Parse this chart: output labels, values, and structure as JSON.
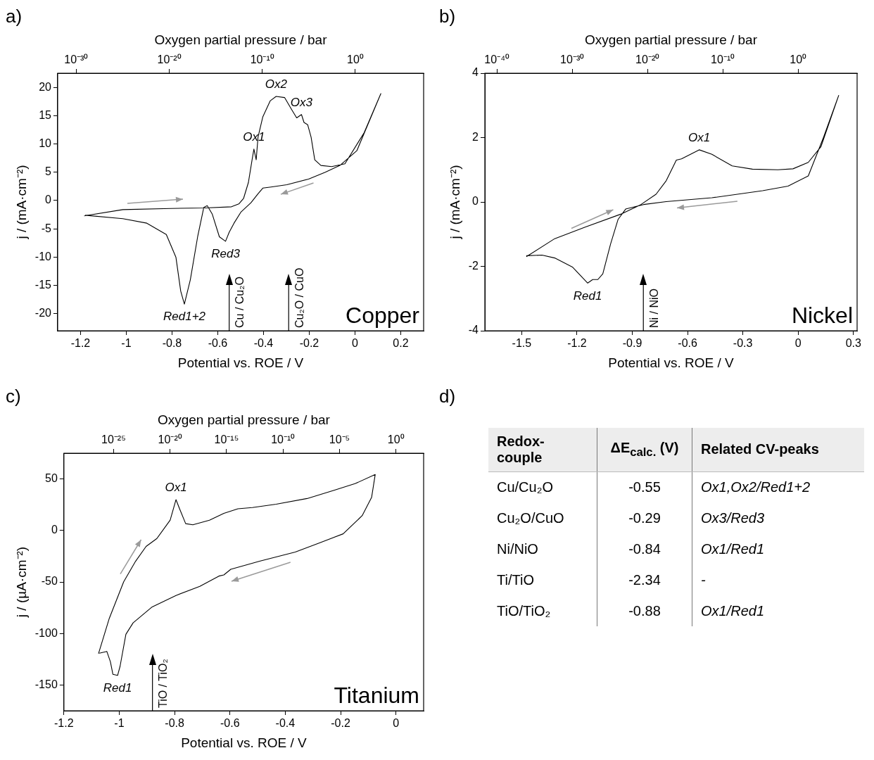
{
  "chart_data": [
    {
      "type": "line",
      "title": "a)",
      "xlabel": "Potential vs. ROE / V",
      "ylabel": "j / (mA·cm⁻²)",
      "x2label": "Oxygen partial pressure / bar",
      "log": "x2",
      "xlim": [
        -1.3,
        0.3
      ],
      "xticks": [
        -1.2,
        -1,
        -0.8,
        -0.6,
        -0.4,
        -0.2,
        0,
        0.2
      ],
      "ylim": [
        -23,
        22.5
      ],
      "yticks": [
        -20,
        -15,
        -10,
        -5,
        0,
        5,
        10,
        15,
        20
      ],
      "x2lim": [
        1.4e-32,
        22000000.0
      ],
      "x2ticks": [
        {
          "value": 1e-30,
          "label": "10⁻³⁰"
        },
        {
          "value": 1e-20,
          "label": "10⁻²⁰"
        },
        {
          "value": 1e-10,
          "label": "10⁻¹⁰"
        },
        {
          "value": 1,
          "label": "10⁰"
        }
      ],
      "series": [
        {
          "color": "#000000",
          "x": [
            -1.184,
            -1.015,
            -0.804,
            -0.656,
            -0.54,
            -0.508,
            -0.487,
            -0.466,
            -0.45,
            -0.442,
            -0.432,
            -0.424,
            -0.403,
            -0.371,
            -0.345,
            -0.308,
            -0.276,
            -0.255,
            -0.234,
            -0.223,
            -0.207,
            -0.192,
            -0.176,
            -0.149,
            -0.102,
            -0.044,
            0.04,
            0.113,
            0.008,
            -0.066,
            -0.13,
            -0.203,
            -0.298,
            -0.367,
            -0.403,
            -0.424,
            -0.455,
            -0.498,
            -0.529,
            -0.55,
            -0.566,
            -0.593,
            -0.624,
            -0.646,
            -0.661,
            -0.688,
            -0.72,
            -0.746,
            -0.762,
            -0.783,
            -0.825,
            -0.91,
            -1.015,
            -1.18
          ],
          "values": [
            -2.7,
            -1.6,
            -1.4,
            -1.3,
            -1.1,
            -0.6,
            0.4,
            3.2,
            7.2,
            9.1,
            7.2,
            11.2,
            14.8,
            17.6,
            18.4,
            18.2,
            16,
            14.6,
            15.2,
            13.8,
            13.4,
            11.2,
            7.2,
            6.2,
            6,
            6.5,
            12,
            18.9,
            8.8,
            6.2,
            5,
            3.8,
            2.8,
            2.4,
            2.2,
            1.2,
            -0.4,
            -2,
            -4,
            -5.6,
            -7.2,
            -6.4,
            -2.4,
            -0.9,
            -1.2,
            -6.4,
            -14,
            -18.3,
            -16,
            -10,
            -6,
            -4,
            -3.2,
            -2.6
          ]
        }
      ],
      "ref_lines": [
        {
          "axis": "x",
          "value": -0.55,
          "label": "Cu / Cu₂O",
          "color": "#000000"
        },
        {
          "axis": "x",
          "value": -0.29,
          "label": "Cu₂O / CuO",
          "color": "#000000"
        }
      ],
      "annotations": [
        {
          "text": "Ox1",
          "x": -0.442,
          "y": 9.1
        },
        {
          "text": "Ox2",
          "x": -0.345,
          "y": 18.4
        },
        {
          "text": "Ox3",
          "x": -0.234,
          "y": 15.2
        },
        {
          "text": "Red3",
          "x": -0.566,
          "y": -7.2
        },
        {
          "text": "Red1+2",
          "x": -0.746,
          "y": -18.3
        },
        "Copper"
      ]
    },
    {
      "type": "line",
      "title": "b)",
      "xlabel": "Potential vs. ROE / V",
      "ylabel": "j / (mA·cm⁻²)",
      "x2label": "Oxygen partial pressure / bar",
      "log": "x2",
      "xlim": [
        -1.7,
        0.32
      ],
      "xticks": [
        -1.5,
        -1.2,
        -0.9,
        -0.6,
        -0.3,
        0,
        0.3
      ],
      "ylim": [
        -4,
        4
      ],
      "yticks": [
        -4,
        -2,
        0,
        2,
        4
      ],
      "x2lim": [
        2.5e-42,
        68000000.0
      ],
      "x2ticks": [
        {
          "value": 1e-40,
          "label": "10⁻⁴⁰"
        },
        {
          "value": 1e-30,
          "label": "10⁻³⁰"
        },
        {
          "value": 1e-20,
          "label": "10⁻²⁰"
        },
        {
          "value": 1e-10,
          "label": "10⁻¹⁰"
        },
        {
          "value": 1,
          "label": "10⁰"
        }
      ],
      "series": [
        {
          "color": "#000000",
          "x": [
            -1.475,
            -1.321,
            -1.156,
            -0.963,
            -0.853,
            -0.771,
            -0.716,
            -0.661,
            -0.633,
            -0.537,
            -0.468,
            -0.358,
            -0.248,
            -0.11,
            -0.028,
            0.055,
            0.124,
            0.22,
            0.138,
            0.055,
            -0.055,
            -0.193,
            -0.468,
            -0.716,
            -0.839,
            -0.936,
            -0.977,
            -1.018,
            -1.06,
            -1.087,
            -1.115,
            -1.142,
            -1.225,
            -1.321,
            -1.39,
            -1.475
          ],
          "values": [
            -1.7,
            -1.14,
            -0.78,
            -0.38,
            -0.08,
            0.24,
            0.66,
            1.3,
            1.34,
            1.62,
            1.48,
            1.12,
            1.02,
            1,
            1.03,
            1.23,
            1.72,
            3.31,
            2.01,
            0.81,
            0.49,
            0.35,
            0.13,
            0.01,
            -0.08,
            -0.22,
            -0.54,
            -1.31,
            -2.23,
            -2.41,
            -2.41,
            -2.52,
            -2.02,
            -1.74,
            -1.65,
            -1.67
          ]
        }
      ],
      "ref_lines": [
        {
          "axis": "x",
          "value": -0.84,
          "label": "Ni / NiO",
          "color": "#000000"
        }
      ],
      "annotations": [
        {
          "text": "Ox1",
          "x": -0.537,
          "y": 1.62
        },
        {
          "text": "Red1",
          "x": -1.142,
          "y": -2.52
        },
        "Nickel"
      ]
    },
    {
      "type": "line",
      "title": "c)",
      "xlabel": "Potential vs. ROE / V",
      "ylabel": "j / (µA·cm⁻²)",
      "x2label": "Oxygen partial pressure / bar",
      "log": "x2",
      "xlim": [
        -1.2,
        0.1
      ],
      "xticks": [
        -1.2,
        -1,
        -0.8,
        -0.6,
        -0.4,
        -0.2,
        0
      ],
      "ylim": [
        -175,
        75
      ],
      "yticks": [
        -150,
        -100,
        -50,
        0,
        50
      ],
      "x2lim": [
        4e-30,
        280
      ],
      "x2ticks": [
        {
          "value": 1e-25,
          "label": "10⁻²⁵"
        },
        {
          "value": 1e-20,
          "label": "10⁻²⁰"
        },
        {
          "value": 1e-15,
          "label": "10⁻¹⁵"
        },
        {
          "value": 1e-10,
          "label": "10⁻¹⁰"
        },
        {
          "value": 1e-05,
          "label": "10⁻⁵"
        },
        {
          "value": 1,
          "label": "10⁰"
        }
      ],
      "series": [
        {
          "color": "#000000",
          "x": [
            -1.075,
            -1.036,
            -0.984,
            -0.941,
            -0.903,
            -0.864,
            -0.816,
            -0.795,
            -0.782,
            -0.76,
            -0.734,
            -0.674,
            -0.622,
            -0.571,
            -0.519,
            -0.433,
            -0.321,
            -0.226,
            -0.148,
            -0.075,
            -0.088,
            -0.122,
            -0.191,
            -0.278,
            -0.364,
            -0.493,
            -0.597,
            -0.622,
            -0.64,
            -0.709,
            -0.795,
            -0.881,
            -0.95,
            -0.976,
            -0.997,
            -1.006,
            -1.023,
            -1.032,
            -1.045,
            -1.072
          ],
          "values": [
            -119.6,
            -85.3,
            -49.8,
            -29.9,
            -15.5,
            -7.8,
            10,
            29.9,
            21,
            6.6,
            5.5,
            10,
            16.6,
            21,
            22.2,
            25.5,
            31,
            38.8,
            45.4,
            54.3,
            32.1,
            14.4,
            -3.3,
            -12.2,
            -21,
            -29.9,
            -37.7,
            -43.2,
            -44.3,
            -54.3,
            -63.1,
            -74.2,
            -89.7,
            -100.8,
            -131.8,
            -140.7,
            -139.6,
            -127.4,
            -117.4,
            -119.2
          ]
        }
      ],
      "ref_lines": [
        {
          "axis": "x",
          "value": -0.88,
          "label": "TiO / TiO₂",
          "color": "#000000"
        }
      ],
      "annotations": [
        {
          "text": "Ox1",
          "x": -0.795,
          "y": 29.9
        },
        {
          "text": "Red1",
          "x": -1.006,
          "y": -140.7
        },
        "Titanium"
      ]
    },
    {
      "type": "other",
      "title": "d)",
      "annotations": [
        "Redox-couple",
        "ΔE$_{calc.}$ (V)",
        "Related CV-peaks",
        "Cu/Cu₂O",
        "-0.55",
        "Ox1,Ox2/Red1+2",
        "Cu₂O/CuO",
        "-0.29",
        "Ox3/Red3",
        "Ni/NiO",
        "-0.84",
        "Ox1/Red1",
        "Ti/TiO",
        "-2.34",
        "-",
        "TiO/TiO₂",
        "-0.88",
        "Ox1/Red1"
      ]
    }
  ]
}
